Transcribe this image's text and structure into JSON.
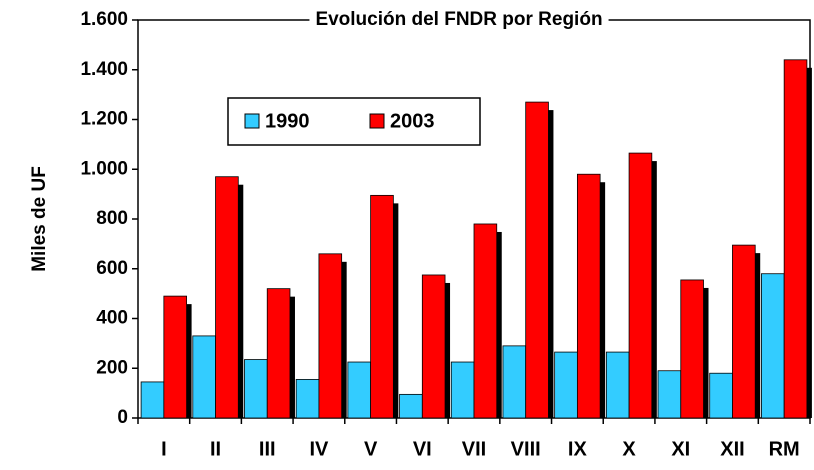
{
  "chart_data": {
    "type": "bar",
    "title": "Evolución del FNDR por Región",
    "y_label": "Miles de UF",
    "categories": [
      "I",
      "II",
      "III",
      "IV",
      "V",
      "VI",
      "VII",
      "VIII",
      "IX",
      "X",
      "XI",
      "XII",
      "RM"
    ],
    "series": [
      {
        "name": "1990",
        "color": "#33ccff",
        "values": [
          145,
          330,
          235,
          155,
          225,
          95,
          225,
          290,
          265,
          265,
          190,
          180,
          580
        ]
      },
      {
        "name": "2003",
        "color": "#ff0000",
        "values": [
          490,
          970,
          520,
          660,
          895,
          575,
          780,
          1270,
          980,
          1065,
          555,
          695,
          1440
        ]
      }
    ],
    "ylim": [
      0,
      1600
    ],
    "yticks": [
      0,
      200,
      400,
      600,
      800,
      {
        "value": 1000,
        "label": "1.000"
      },
      {
        "value": 1200,
        "label": "1.200"
      },
      {
        "value": 1400,
        "label": "1.400"
      },
      {
        "value": 1600,
        "label": "1.600"
      }
    ],
    "legend": "upper left"
  }
}
